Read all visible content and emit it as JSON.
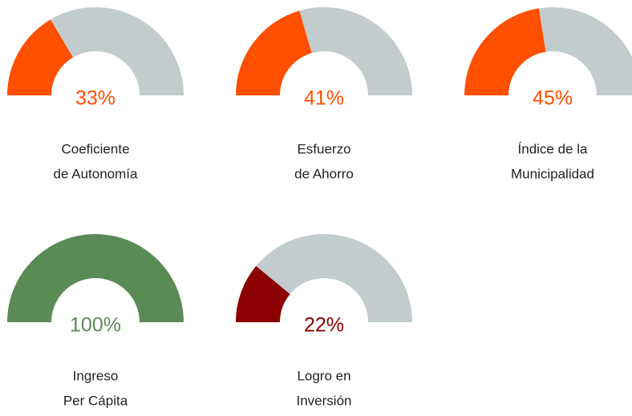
{
  "chart_data": [
    {
      "type": "gauge",
      "title": [
        "Coeficiente",
        "de Autonomía"
      ],
      "value": 33,
      "value_label": "33%",
      "color": "#ff4f00",
      "track_color": "#c2cccc",
      "ylim": [
        0,
        100
      ]
    },
    {
      "type": "gauge",
      "title": [
        "Esfuerzo",
        "de Ahorro"
      ],
      "value": 41,
      "value_label": "41%",
      "color": "#ff4f00",
      "track_color": "#c2cccc",
      "ylim": [
        0,
        100
      ]
    },
    {
      "type": "gauge",
      "title": [
        "Índice de la",
        "Municipalidad"
      ],
      "value": 45,
      "value_label": "45%",
      "color": "#ff4f00",
      "track_color": "#c2cccc",
      "ylim": [
        0,
        100
      ]
    },
    {
      "type": "gauge",
      "title": [
        "Ingreso",
        "Per Cápita"
      ],
      "value": 100,
      "value_label": "100%",
      "color": "#5a8a55",
      "track_color": "#c2cccc",
      "ylim": [
        0,
        100
      ]
    },
    {
      "type": "gauge",
      "title": [
        "Logro en",
        "Inversión"
      ],
      "value": 22,
      "value_label": "22%",
      "color": "#8b0000",
      "track_color": "#c2cccc",
      "ylim": [
        0,
        100
      ]
    }
  ]
}
